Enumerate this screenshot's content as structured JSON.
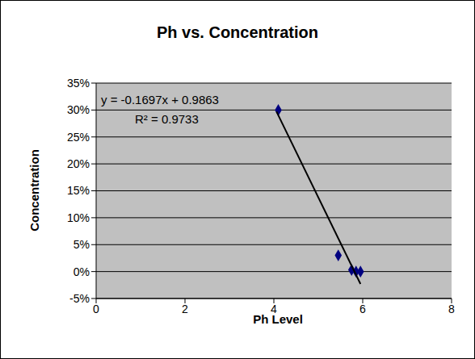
{
  "chart_data": {
    "type": "scatter",
    "title": "Ph vs. Concentration",
    "x_label": "Ph Level",
    "y_label": "Concentration",
    "xlim": [
      0,
      8
    ],
    "xticks": [
      0,
      2,
      4,
      6,
      8
    ],
    "ylim": [
      -5,
      35
    ],
    "yticks": [
      {
        "value": -5,
        "label": "-5%"
      },
      {
        "value": 0,
        "label": "0%"
      },
      {
        "value": 5,
        "label": "5%"
      },
      {
        "value": 10,
        "label": "10%"
      },
      {
        "value": 15,
        "label": "15%"
      },
      {
        "value": 20,
        "label": "20%"
      },
      {
        "value": 25,
        "label": "25%"
      },
      {
        "value": 30,
        "label": "30%"
      },
      {
        "value": 35,
        "label": "35%"
      }
    ],
    "grid": true,
    "annotations": [
      "y = -0.1697x + 0.9863",
      "R² = 0.9733"
    ],
    "series": [
      {
        "type": "scatter",
        "marker": "diamond",
        "color": "#000080",
        "x": [
          4.1,
          5.45,
          5.75,
          5.85,
          5.95
        ],
        "values": [
          30,
          3,
          0.3,
          0,
          0
        ]
      },
      {
        "type": "line",
        "line_style": "solid",
        "color": "#000000",
        "x": [
          4.06,
          5.95
        ],
        "values": [
          29.7,
          -2.3
        ]
      }
    ]
  }
}
